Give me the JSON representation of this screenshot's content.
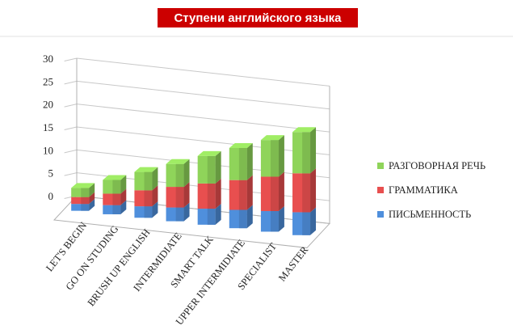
{
  "chart_data": {
    "type": "bar",
    "stacked": true,
    "three_d": true,
    "title": "Ступени английского языка",
    "categories": [
      "LET'S BEGIN",
      "GO ON STUDING",
      "BRUSH UP ENGLISH",
      "INTERMIDIATE",
      "SMART TALK",
      "UPPER INTERMIDIATE",
      "SPECIALIST",
      "MASTER"
    ],
    "series": [
      {
        "name": "ПИСЬМЕННОСТЬ",
        "color": "#4f8fdc",
        "values": [
          1.5,
          2,
          2.5,
          3,
          3.5,
          4,
          4.5,
          5
        ]
      },
      {
        "name": "ГРАММАТИКА",
        "color": "#e84f4f",
        "values": [
          1.5,
          2.5,
          3.5,
          4.5,
          5.5,
          6.5,
          7.5,
          8.5
        ]
      },
      {
        "name": "РАЗГОВОРНАЯ РЕЧЬ",
        "color": "#8fd45a",
        "values": [
          2,
          3,
          4,
          5,
          6,
          7,
          8,
          9
        ]
      }
    ],
    "ylim": [
      0,
      30
    ],
    "yticks": [
      0,
      5,
      10,
      15,
      20,
      25,
      30
    ],
    "grid": true,
    "legend": "right"
  }
}
